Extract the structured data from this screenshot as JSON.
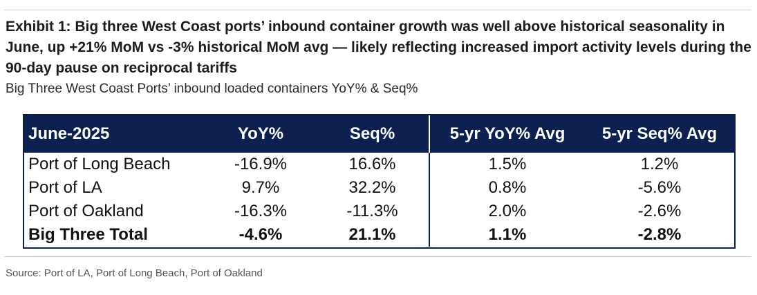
{
  "exhibit": {
    "title": "Exhibit 1: Big three West Coast ports’ inbound container growth was well above historical seasonality in June, up +21% MoM vs -3% historical MoM avg — likely reflecting increased import activity levels during the 90-day pause on reciprocal tariffs",
    "subtitle": "Big Three West Coast Ports’ inbound loaded containers YoY% & Seq%",
    "source": "Source: Port of LA, Port of Long Beach, Port of Oakland"
  },
  "table": {
    "headers": [
      "June-2025",
      "YoY%",
      "Seq%",
      "5-yr YoY% Avg",
      "5-yr Seq% Avg"
    ],
    "rows": [
      [
        "Port of Long Beach",
        "-16.9%",
        "16.6%",
        "1.5%",
        "1.2%"
      ],
      [
        "Port of LA",
        "9.7%",
        "32.2%",
        "0.8%",
        "-5.6%"
      ],
      [
        "Port of Oakland",
        "-16.3%",
        "-11.3%",
        "2.0%",
        "-2.6%"
      ],
      [
        "Big Three Total",
        "-4.6%",
        "21.1%",
        "1.1%",
        "-2.8%"
      ]
    ]
  },
  "colors": {
    "header_bg": "#0d2050",
    "header_text": "#ffffff",
    "border": "#0b1f4b"
  }
}
